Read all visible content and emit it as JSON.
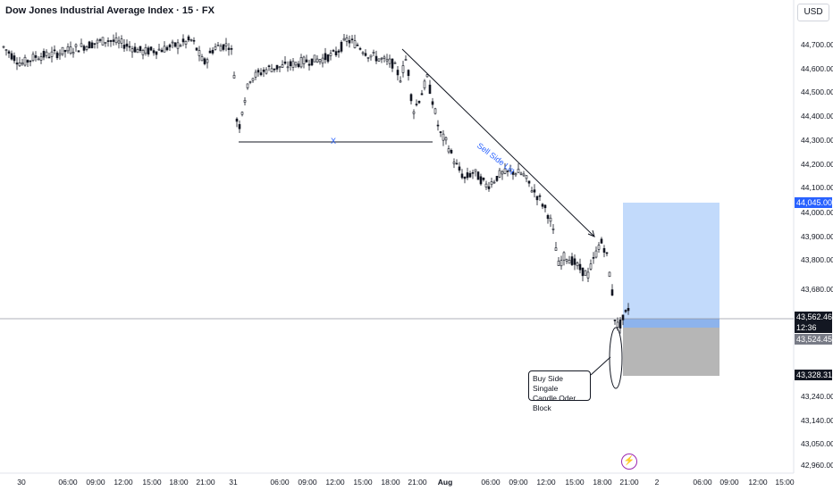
{
  "header": {
    "title": "Dow Jones Industrial Average Index · 15 · FX",
    "currency": "USD"
  },
  "price_scale": {
    "ticks": [
      "44,700.00",
      "44,600.00",
      "44,500.00",
      "44,400.00",
      "44,300.00",
      "44,200.00",
      "44,100.00",
      "44,000.00",
      "43,900.00",
      "43,800.00",
      "43,680.00",
      "43,240.00",
      "43,140.00",
      "43,050.00",
      "42,960.00"
    ],
    "tags": {
      "target": "44,045.00",
      "last_price": "43,562.46",
      "countdown": "12:36",
      "entry": "43,524.45",
      "stop": "43,328.31"
    }
  },
  "time_axis": {
    "labels": [
      "30",
      "06:00",
      "09:00",
      "12:00",
      "15:00",
      "18:00",
      "21:00",
      "31",
      "06:00",
      "09:00",
      "12:00",
      "15:00",
      "18:00",
      "21:00",
      "Aug",
      "06:00",
      "09:00",
      "12:00",
      "15:00",
      "18:00",
      "21:00",
      "2",
      "06:00",
      "09:00",
      "12:00",
      "15:00"
    ]
  },
  "annotations": {
    "range_label": "X",
    "trend_label": "Sell Side Liq",
    "callout_line1": "Buy Side Singale",
    "callout_line2": "Candle Oder Block"
  },
  "chart_data": {
    "type": "candlestick",
    "title": "Dow Jones Industrial Average Index · 15 · FX",
    "xlabel": "",
    "ylabel": "",
    "ylim": [
      42920,
      44780
    ],
    "grid": false,
    "trace": {
      "x_labels": [
        "30",
        "06:00",
        "09:00",
        "12:00",
        "15:00",
        "18:00",
        "21:00",
        "31",
        "06:00",
        "09:00",
        "12:00",
        "15:00",
        "18:00",
        "21:00",
        "Aug",
        "06:00",
        "09:00",
        "12:00",
        "15:00",
        "18:00",
        "21:00"
      ],
      "close": [
        44640,
        44660,
        44690,
        44700,
        44650,
        44670,
        44700,
        44300,
        44560,
        44590,
        44650,
        44680,
        44600,
        44430,
        44100,
        44150,
        43850,
        43740,
        43700,
        43850,
        43555
      ]
    },
    "position": {
      "target": 44045.0,
      "entry": 43524.45,
      "stop": 43328.31,
      "last": 43562.46
    },
    "colors": {
      "profit": "#bbd6fb",
      "loss": "#b2b2b2",
      "candle": "#131722",
      "drawing": "#2962ff"
    }
  }
}
